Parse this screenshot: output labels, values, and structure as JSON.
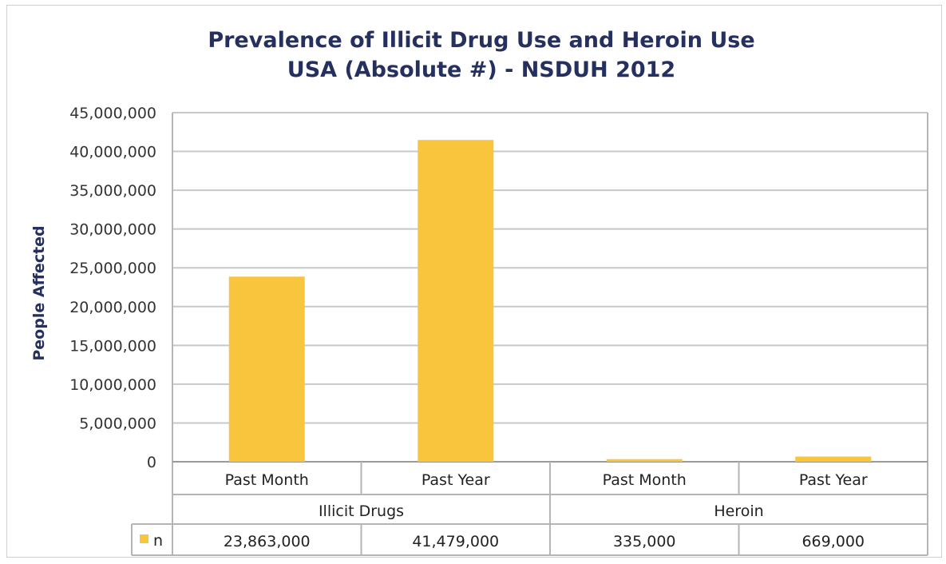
{
  "chart_data": {
    "type": "bar",
    "title": "Prevalence of Illicit Drug Use and Heroin Use",
    "subtitle": "USA (Absolute #) - NSDUH 2012",
    "ylabel": "People Affected",
    "xlabel": "",
    "ylim": [
      0,
      45000000
    ],
    "yticks": [
      "0",
      "5,000,000",
      "10,000,000",
      "15,000,000",
      "20,000,000",
      "25,000,000",
      "30,000,000",
      "35,000,000",
      "40,000,000",
      "45,000,000"
    ],
    "ytick_values": [
      0,
      5000000,
      10000000,
      15000000,
      20000000,
      25000000,
      30000000,
      35000000,
      40000000,
      45000000
    ],
    "categories": [
      "Past Month",
      "Past Year",
      "Past Month",
      "Past Year"
    ],
    "groups": [
      {
        "label": "Illicit Drugs",
        "span": 2
      },
      {
        "label": "Heroin",
        "span": 2
      }
    ],
    "series": [
      {
        "name": "n",
        "color": "#f9c53c",
        "values": [
          23863000,
          41479000,
          335000,
          669000
        ],
        "value_labels": [
          "23,863,000",
          "41,479,000",
          "335,000",
          "669,000"
        ]
      }
    ],
    "grid": true,
    "legend": "data-table-left",
    "data_table": true
  }
}
